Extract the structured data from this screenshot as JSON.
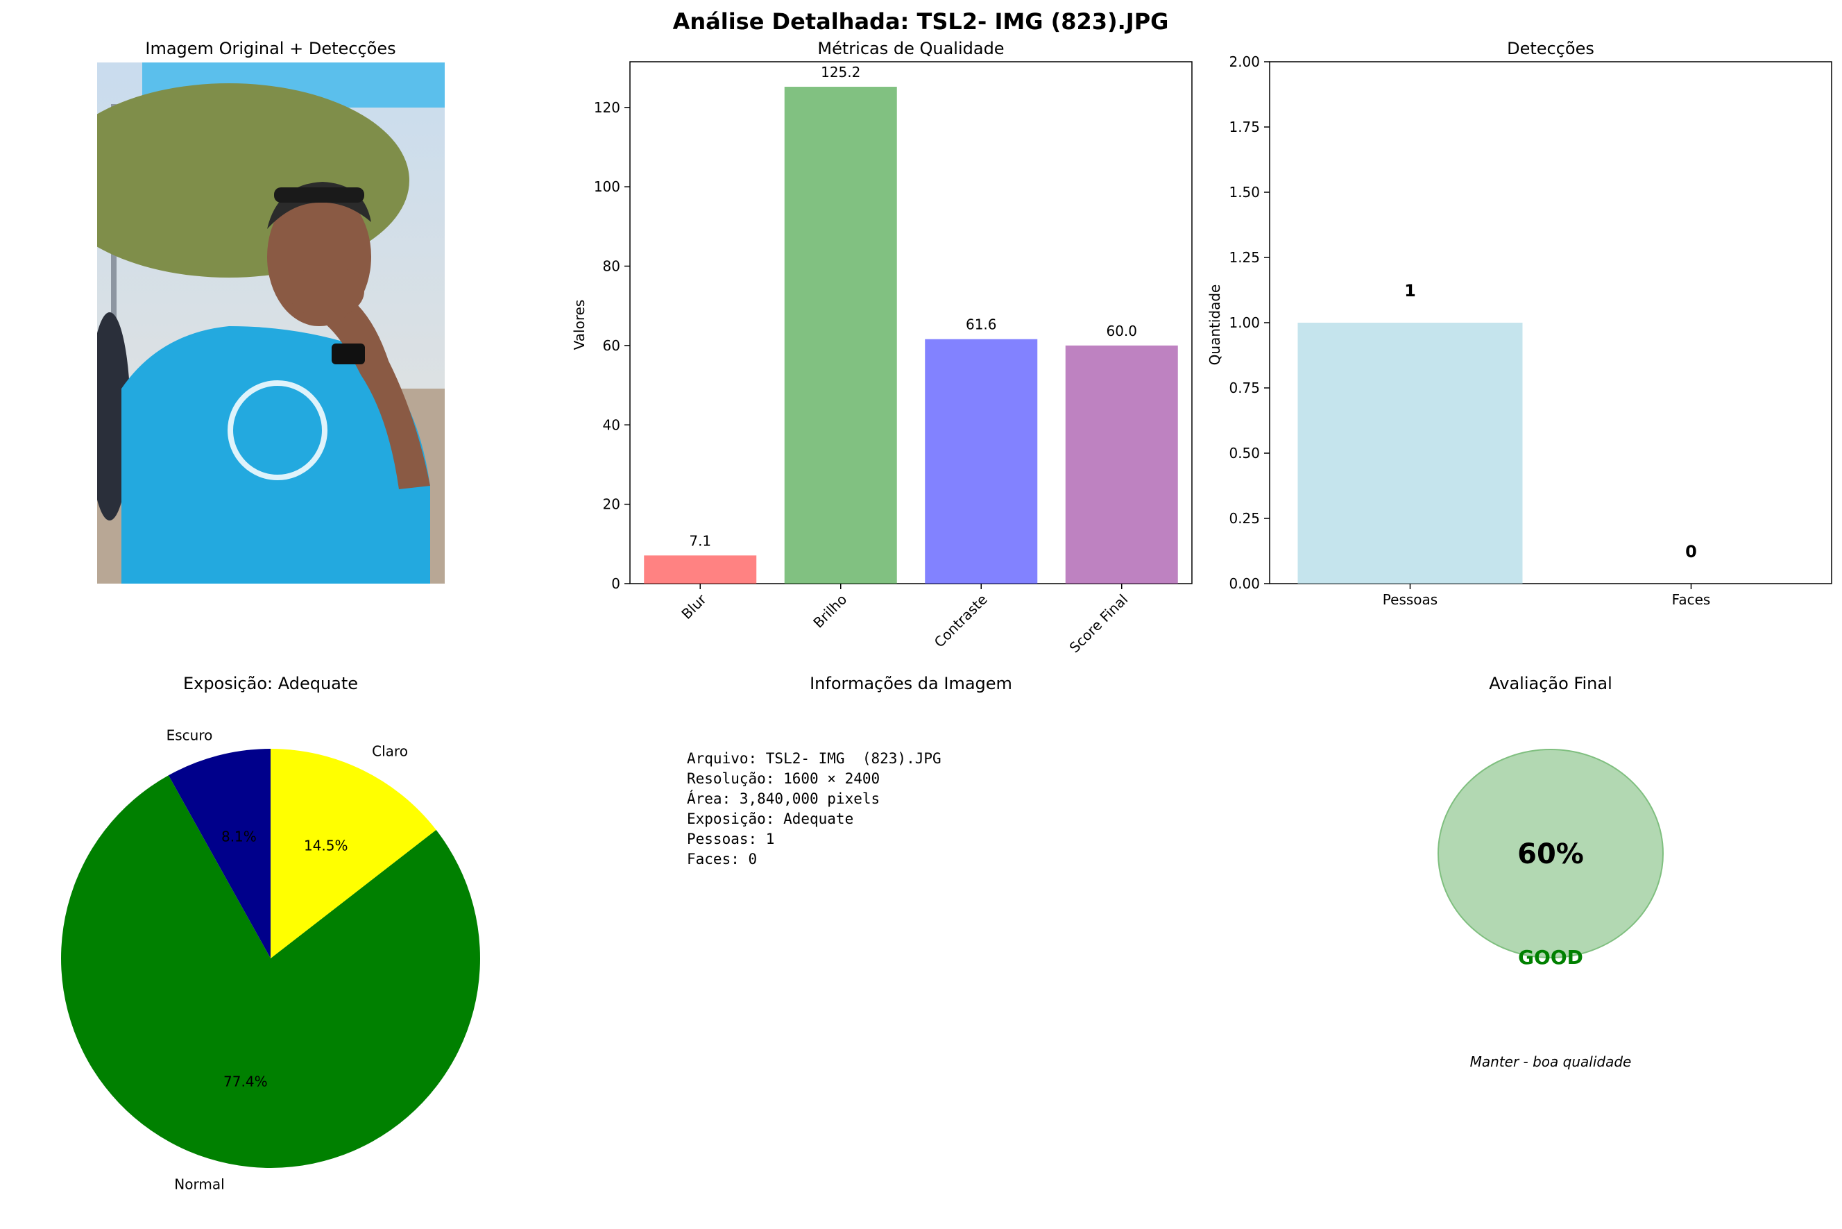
{
  "suptitle": "Análise Detalhada: TSL2- IMG  (823).JPG",
  "panels": {
    "image": {
      "title": "Imagem Original + Detecções"
    },
    "info": {
      "title": "Informações da Imagem",
      "lines": [
        "Arquivo: TSL2- IMG  (823).JPG",
        "Resolução: 1600 × 2400",
        "Área: 3,840,000 pixels",
        "Exposição: Adequate",
        "Pessoas: 1",
        "Faces: 0"
      ]
    },
    "final": {
      "title": "Avaliação Final",
      "score_label": "60%",
      "score": 60,
      "grade": "GOOD",
      "grade_color": "#008000",
      "circle_color": "#b2d8b2",
      "recommendation": "Manter - boa qualidade"
    }
  },
  "colors": {
    "image_sky": "#c9dcee",
    "image_banner": "#5bbfec",
    "image_shirt": "#23a9df",
    "image_trees": "#7f8e4a",
    "image_ground": "#b8a795",
    "image_skin": "#8a5a44"
  },
  "chart_data": [
    {
      "type": "bar",
      "title": "Métricas de Qualidade",
      "ylabel": "Valores",
      "categories": [
        "Blur",
        "Brilho",
        "Contraste",
        "Score Final"
      ],
      "values": [
        7.1,
        125.2,
        61.6,
        60.0
      ],
      "value_labels": [
        "7.1",
        "125.2",
        "61.6",
        "60.0"
      ],
      "colors": [
        "#ff4d4d",
        "#4ca64c",
        "#4d4dff",
        "#a34da6"
      ],
      "ylim": [
        0,
        131.5
      ],
      "yticks": [
        0,
        20,
        40,
        60,
        80,
        100,
        120
      ],
      "ytick_labels": [
        "0",
        "20",
        "40",
        "60",
        "80",
        "100",
        "120"
      ],
      "xtick_rotation": 45
    },
    {
      "type": "bar",
      "title": "Detecções",
      "ylabel": "Quantidade",
      "categories": [
        "Pessoas",
        "Faces"
      ],
      "values": [
        1,
        0
      ],
      "value_labels": [
        "1",
        "0"
      ],
      "colors": [
        "#add8e6",
        "#f08080"
      ],
      "ylim": [
        0,
        2.0
      ],
      "yticks": [
        0,
        0.25,
        0.5,
        0.75,
        1.0,
        1.25,
        1.5,
        1.75,
        2.0
      ],
      "ytick_labels": [
        "0.00",
        "0.25",
        "0.50",
        "0.75",
        "1.00",
        "1.25",
        "1.50",
        "1.75",
        "2.00"
      ]
    },
    {
      "type": "pie",
      "title": "Exposição: Adequate",
      "labels": [
        "Escuro",
        "Normal",
        "Claro"
      ],
      "values": [
        8.1,
        77.4,
        14.5
      ],
      "pct_labels": [
        "8.1%",
        "77.4%",
        "14.5%"
      ],
      "colors": [
        "#00008b",
        "#008000",
        "#ffff00"
      ]
    }
  ]
}
